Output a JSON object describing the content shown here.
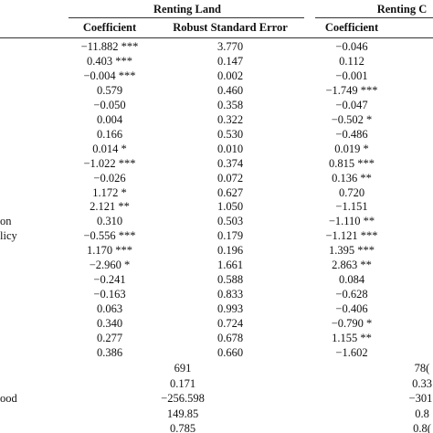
{
  "table": {
    "groups": [
      "Renting Land",
      "Renting C"
    ],
    "columns": [
      "Coefficient",
      "Robust Standard Error",
      "Coefficient"
    ],
    "rows": [
      {
        "cells": [
          "−11.882 ***",
          "3.770",
          "−0.046"
        ]
      },
      {
        "cells": [
          "0.403 ***",
          "0.147",
          "0.112"
        ]
      },
      {
        "cells": [
          "−0.004 ***",
          "0.002",
          "−0.001"
        ]
      },
      {
        "cells": [
          "0.579",
          "0.460",
          "−1.749 ***"
        ]
      },
      {
        "cells": [
          "−0.050",
          "0.358",
          "−0.047"
        ]
      },
      {
        "cells": [
          "0.004",
          "0.322",
          "−0.502 *"
        ]
      },
      {
        "cells": [
          "0.166",
          "0.530",
          "−0.486"
        ]
      },
      {
        "cells": [
          "0.014 *",
          "0.010",
          "0.019 *"
        ]
      },
      {
        "cells": [
          "−1.022 ***",
          "0.374",
          "0.815 ***"
        ]
      },
      {
        "cells": [
          "−0.026",
          "0.072",
          "0.136 **"
        ]
      },
      {
        "cells": [
          "1.172 *",
          "0.627",
          "0.720"
        ]
      },
      {
        "cells": [
          "2.121 **",
          "1.050",
          "−1.151"
        ]
      },
      {
        "label": "on",
        "cells": [
          "0.310",
          "0.503",
          "−1.110 **"
        ]
      },
      {
        "label": "licy",
        "cells": [
          "−0.556 ***",
          "0.179",
          "−1.121 ***"
        ]
      },
      {
        "cells": [
          "1.170 ***",
          "0.196",
          "1.395 ***"
        ]
      },
      {
        "cells": [
          "−2.960 *",
          "1.661",
          "2.863 **"
        ]
      },
      {
        "cells": [
          "−0.241",
          "0.588",
          "0.084"
        ]
      },
      {
        "cells": [
          "−0.163",
          "0.833",
          "−0.628"
        ]
      },
      {
        "cells": [
          "0.063",
          "0.993",
          "−0.406"
        ]
      },
      {
        "cells": [
          "0.340",
          "0.724",
          "−0.790 *"
        ]
      },
      {
        "cells": [
          "0.277",
          "0.678",
          "1.155 **"
        ]
      },
      {
        "cells": [
          "0.386",
          "0.660",
          "−1.602"
        ]
      }
    ],
    "stats": [
      {
        "cells": [
          "691",
          "78("
        ]
      },
      {
        "cells": [
          "0.171",
          "0.33"
        ]
      },
      {
        "label": "ood",
        "cells": [
          "−256.598",
          "−301."
        ]
      },
      {
        "cells": [
          "149.85",
          "0.8"
        ]
      },
      {
        "cells": [
          "0.785",
          "0.8("
        ]
      }
    ]
  }
}
